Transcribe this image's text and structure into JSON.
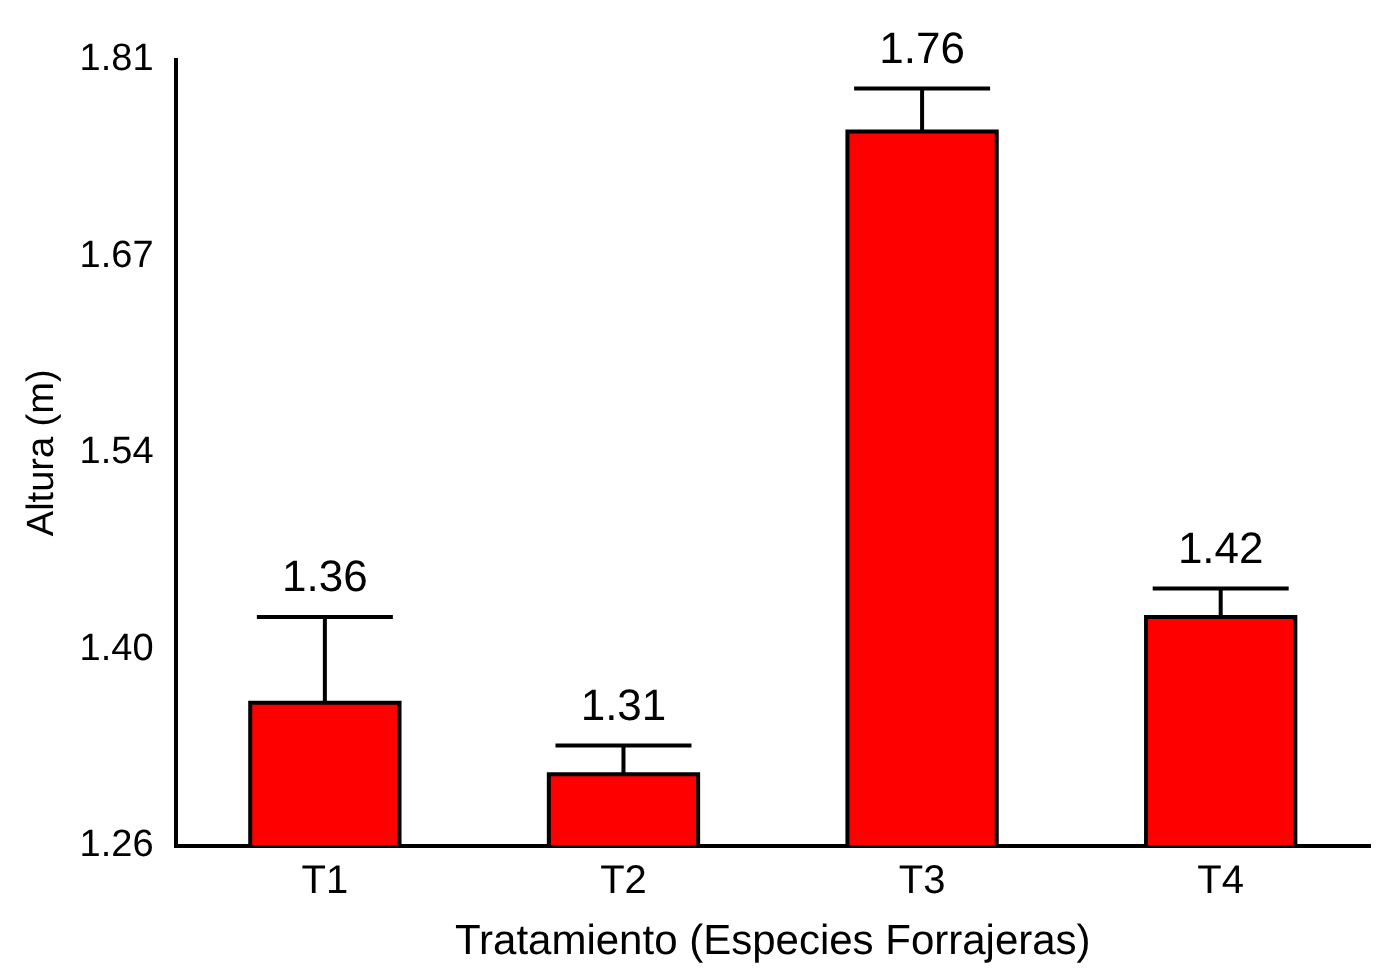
{
  "chart_data": {
    "type": "bar",
    "xlabel": "Tratamiento (Especies Forrajeras)",
    "ylabel": "Altura (m)",
    "categories": [
      "T1",
      "T2",
      "T3",
      "T4"
    ],
    "values": [
      1.36,
      1.31,
      1.76,
      1.42
    ],
    "errors": [
      [
        1.36,
        1.42
      ],
      [
        1.31,
        1.33
      ],
      [
        1.76,
        1.79
      ],
      [
        1.42,
        1.44
      ]
    ],
    "color": "#ff0000",
    "ylim": [
      1.26,
      1.81
    ],
    "yticks": [
      1.26,
      {
        "value": 1.3975,
        "label": "1.40"
      },
      {
        "value": 1.535,
        "label": "1.54"
      },
      {
        "value": 1.6725,
        "label": "1.67"
      },
      1.81
    ],
    "grid": false,
    "legend": false,
    "data_labels": true
  }
}
